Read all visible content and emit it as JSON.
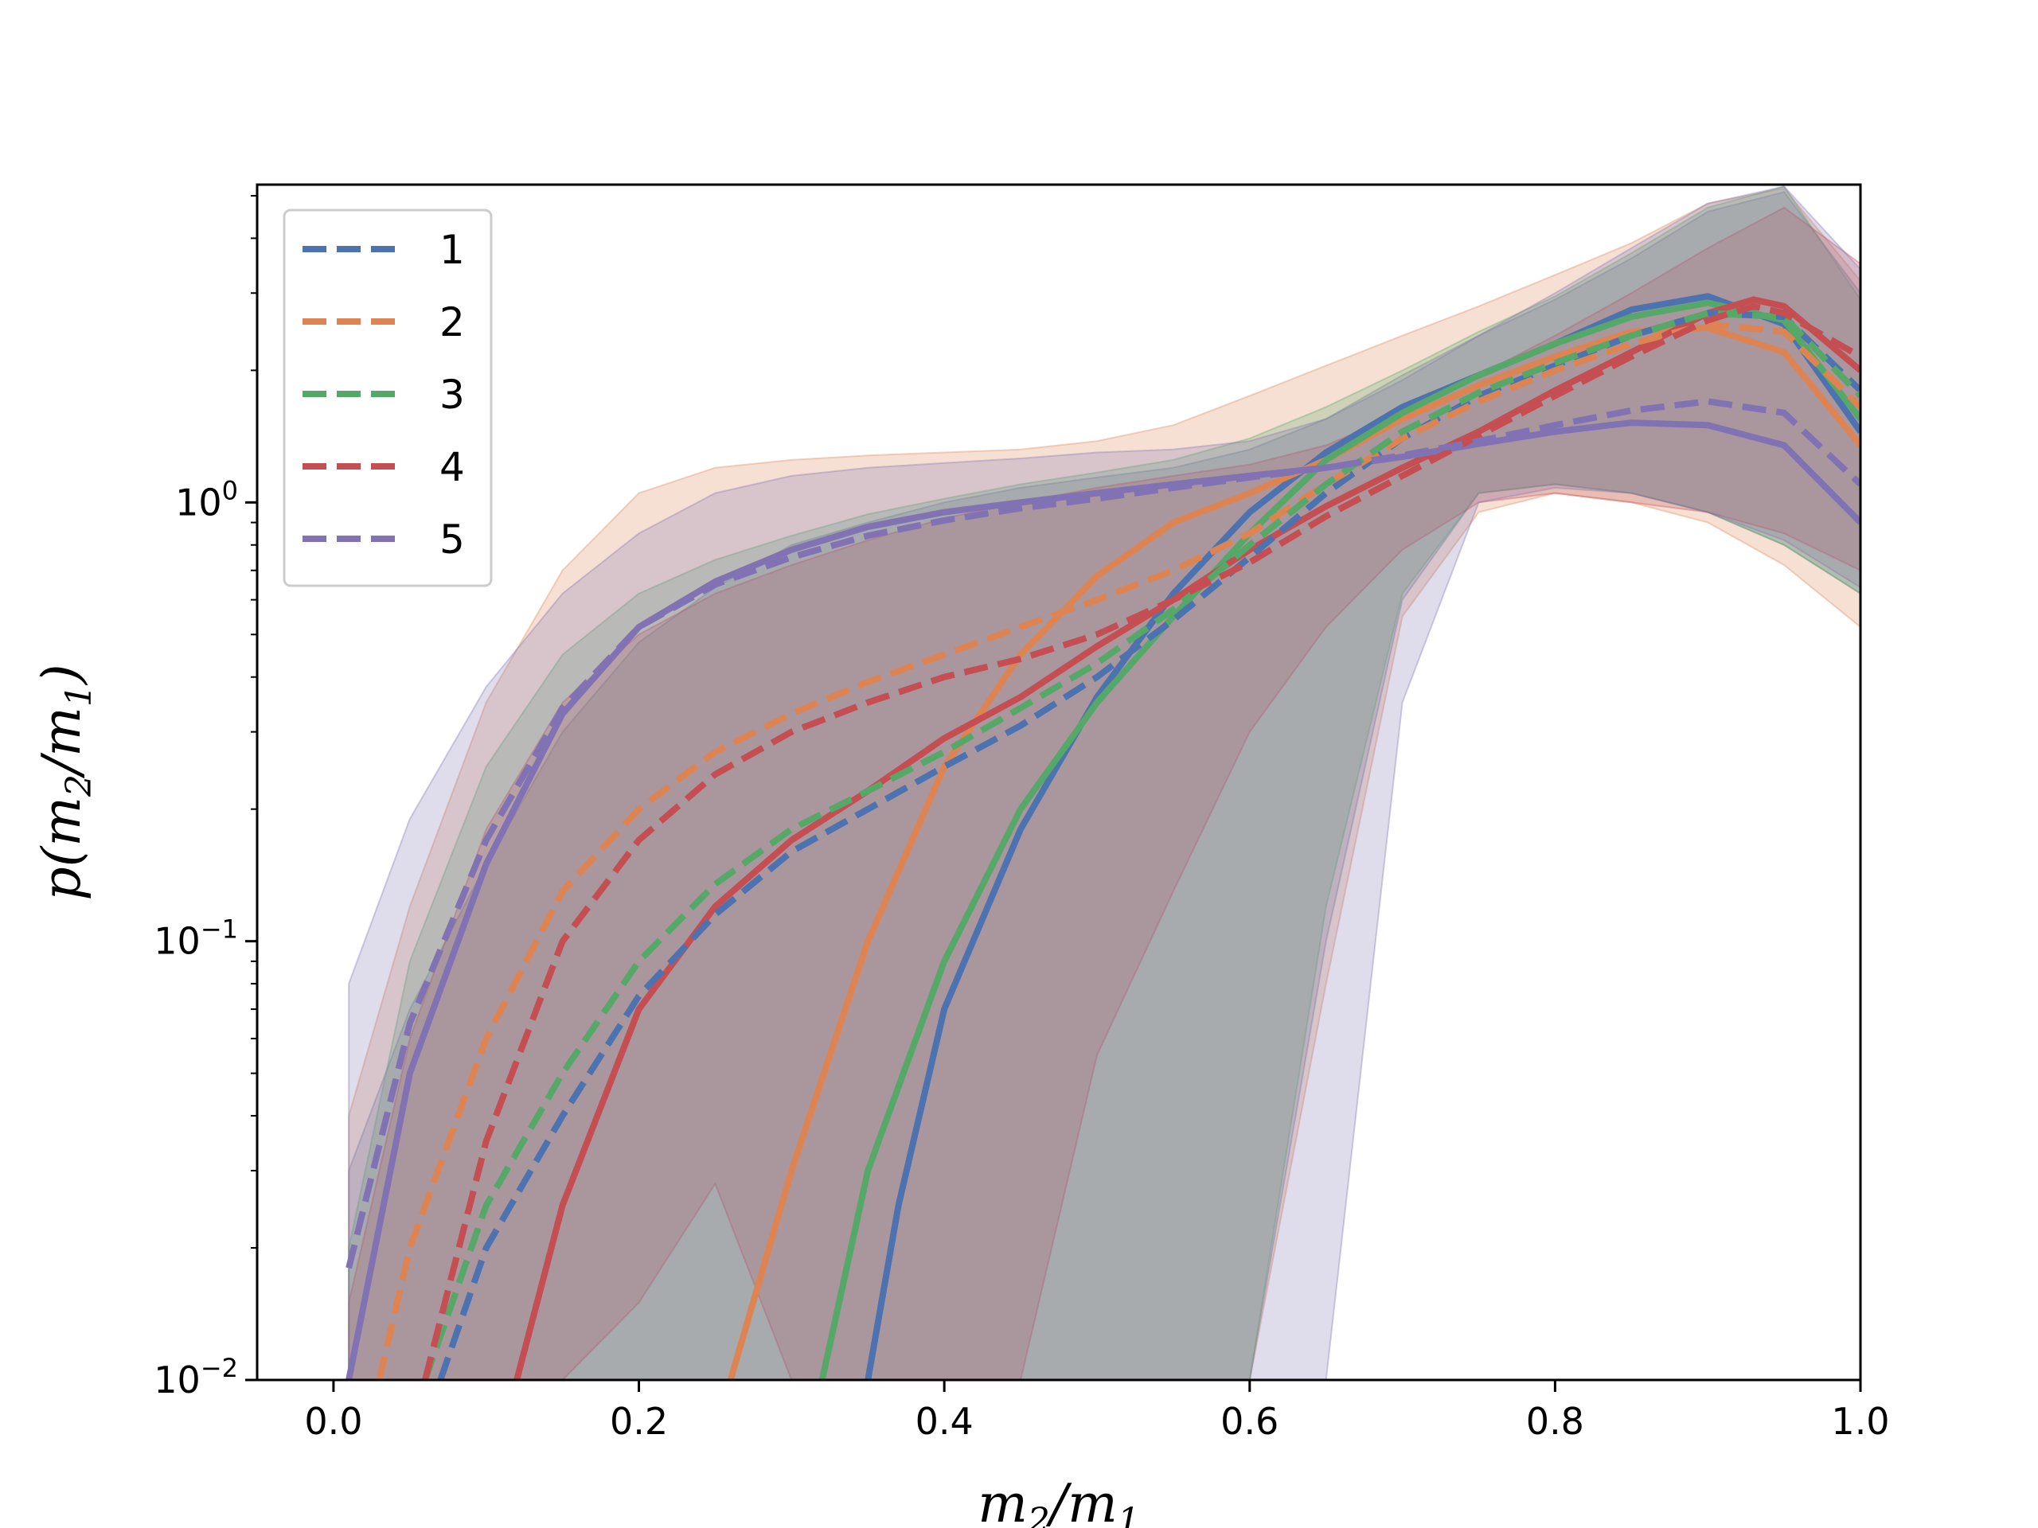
{
  "chart_data": {
    "type": "line",
    "title": "",
    "xlabel": "m2/m1",
    "ylabel": "p(m2/m1)",
    "xlim": [
      -0.05,
      1.0
    ],
    "ylim": [
      0.01,
      5.3
    ],
    "yscale": "log",
    "grid": false,
    "legend_position": "top-left",
    "x_ticks": [
      {
        "value": 0.0,
        "label": "0.0"
      },
      {
        "value": 0.2,
        "label": "0.2"
      },
      {
        "value": 0.4,
        "label": "0.4"
      },
      {
        "value": 0.6,
        "label": "0.6"
      },
      {
        "value": 0.8,
        "label": "0.8"
      },
      {
        "value": 1.0,
        "label": "1.0"
      }
    ],
    "y_ticks": [
      {
        "value": 0.01,
        "base": "10",
        "exp": "−2"
      },
      {
        "value": 0.1,
        "base": "10",
        "exp": "−1"
      },
      {
        "value": 1,
        "base": "10",
        "exp": "0"
      }
    ],
    "series": [
      {
        "name": "1",
        "color": "#4c72b0",
        "solid": [
          [
            0.35,
            0.01
          ],
          [
            0.37,
            0.025
          ],
          [
            0.4,
            0.07
          ],
          [
            0.45,
            0.18
          ],
          [
            0.5,
            0.36
          ],
          [
            0.55,
            0.62
          ],
          [
            0.6,
            0.95
          ],
          [
            0.65,
            1.3
          ],
          [
            0.7,
            1.65
          ],
          [
            0.75,
            1.95
          ],
          [
            0.8,
            2.3
          ],
          [
            0.85,
            2.75
          ],
          [
            0.9,
            2.95
          ],
          [
            0.95,
            2.55
          ],
          [
            1.0,
            1.45
          ]
        ],
        "dashed": [
          [
            0.07,
            0.01
          ],
          [
            0.1,
            0.02
          ],
          [
            0.15,
            0.04
          ],
          [
            0.2,
            0.075
          ],
          [
            0.25,
            0.115
          ],
          [
            0.3,
            0.16
          ],
          [
            0.35,
            0.2
          ],
          [
            0.4,
            0.25
          ],
          [
            0.45,
            0.31
          ],
          [
            0.5,
            0.4
          ],
          [
            0.55,
            0.54
          ],
          [
            0.6,
            0.75
          ],
          [
            0.65,
            1.05
          ],
          [
            0.7,
            1.4
          ],
          [
            0.75,
            1.75
          ],
          [
            0.8,
            2.05
          ],
          [
            0.85,
            2.4
          ],
          [
            0.9,
            2.7
          ],
          [
            0.95,
            2.65
          ],
          [
            1.0,
            1.8
          ]
        ],
        "band": {
          "x": [
            0.01,
            0.05,
            0.1,
            0.15,
            0.2,
            0.25,
            0.3,
            0.35,
            0.4,
            0.45,
            0.5,
            0.55,
            0.6,
            0.65,
            0.7,
            0.75,
            0.8,
            0.85,
            0.9,
            0.95,
            1.0
          ],
          "upper": [
            0.03,
            0.07,
            0.15,
            0.3,
            0.48,
            0.64,
            0.8,
            0.9,
            1.0,
            1.08,
            1.14,
            1.2,
            1.32,
            1.55,
            1.95,
            2.4,
            2.9,
            3.6,
            4.6,
            5.1,
            3.0
          ],
          "lower": [
            0.01,
            0.01,
            0.01,
            0.01,
            0.01,
            0.01,
            0.01,
            0.01,
            0.01,
            0.01,
            0.01,
            0.01,
            0.01,
            0.1,
            0.6,
            1.05,
            1.1,
            1.05,
            0.95,
            0.8,
            0.62
          ]
        }
      },
      {
        "name": "2",
        "color": "#dd8452",
        "solid": [
          [
            0.26,
            0.01
          ],
          [
            0.3,
            0.03
          ],
          [
            0.35,
            0.1
          ],
          [
            0.4,
            0.25
          ],
          [
            0.45,
            0.45
          ],
          [
            0.5,
            0.68
          ],
          [
            0.55,
            0.9
          ],
          [
            0.6,
            1.05
          ],
          [
            0.65,
            1.25
          ],
          [
            0.7,
            1.55
          ],
          [
            0.75,
            1.85
          ],
          [
            0.8,
            2.15
          ],
          [
            0.85,
            2.45
          ],
          [
            0.9,
            2.5
          ],
          [
            0.95,
            2.2
          ],
          [
            1.0,
            1.35
          ]
        ],
        "dashed": [
          [
            0.03,
            0.01
          ],
          [
            0.05,
            0.02
          ],
          [
            0.1,
            0.06
          ],
          [
            0.15,
            0.13
          ],
          [
            0.2,
            0.2
          ],
          [
            0.25,
            0.27
          ],
          [
            0.3,
            0.33
          ],
          [
            0.35,
            0.39
          ],
          [
            0.4,
            0.45
          ],
          [
            0.45,
            0.52
          ],
          [
            0.5,
            0.6
          ],
          [
            0.55,
            0.7
          ],
          [
            0.6,
            0.85
          ],
          [
            0.65,
            1.1
          ],
          [
            0.7,
            1.4
          ],
          [
            0.75,
            1.7
          ],
          [
            0.8,
            2.0
          ],
          [
            0.85,
            2.3
          ],
          [
            0.9,
            2.55
          ],
          [
            0.95,
            2.45
          ],
          [
            1.0,
            1.65
          ]
        ],
        "band": {
          "x": [
            0.01,
            0.05,
            0.1,
            0.15,
            0.2,
            0.25,
            0.3,
            0.35,
            0.4,
            0.45,
            0.5,
            0.55,
            0.6,
            0.65,
            0.7,
            0.75,
            0.8,
            0.85,
            0.9,
            0.95,
            1.0
          ],
          "upper": [
            0.04,
            0.12,
            0.35,
            0.7,
            1.05,
            1.2,
            1.25,
            1.28,
            1.3,
            1.32,
            1.38,
            1.5,
            1.75,
            2.05,
            2.4,
            2.8,
            3.3,
            3.9,
            4.8,
            5.2,
            3.2
          ],
          "lower": [
            0.01,
            0.01,
            0.01,
            0.01,
            0.01,
            0.01,
            0.01,
            0.01,
            0.01,
            0.01,
            0.01,
            0.01,
            0.01,
            0.08,
            0.55,
            0.95,
            1.05,
            1.0,
            0.9,
            0.72,
            0.52
          ]
        }
      },
      {
        "name": "3",
        "color": "#55a868",
        "solid": [
          [
            0.32,
            0.01
          ],
          [
            0.35,
            0.03
          ],
          [
            0.4,
            0.09
          ],
          [
            0.45,
            0.2
          ],
          [
            0.5,
            0.35
          ],
          [
            0.55,
            0.55
          ],
          [
            0.6,
            0.85
          ],
          [
            0.65,
            1.25
          ],
          [
            0.7,
            1.6
          ],
          [
            0.75,
            1.95
          ],
          [
            0.8,
            2.3
          ],
          [
            0.85,
            2.65
          ],
          [
            0.9,
            2.85
          ],
          [
            0.95,
            2.6
          ],
          [
            1.0,
            1.55
          ]
        ],
        "dashed": [
          [
            0.06,
            0.01
          ],
          [
            0.1,
            0.025
          ],
          [
            0.15,
            0.05
          ],
          [
            0.2,
            0.09
          ],
          [
            0.25,
            0.135
          ],
          [
            0.3,
            0.18
          ],
          [
            0.35,
            0.22
          ],
          [
            0.4,
            0.27
          ],
          [
            0.45,
            0.34
          ],
          [
            0.5,
            0.43
          ],
          [
            0.55,
            0.57
          ],
          [
            0.6,
            0.8
          ],
          [
            0.65,
            1.1
          ],
          [
            0.7,
            1.45
          ],
          [
            0.75,
            1.78
          ],
          [
            0.8,
            2.08
          ],
          [
            0.85,
            2.4
          ],
          [
            0.9,
            2.7
          ],
          [
            0.95,
            2.65
          ],
          [
            1.0,
            1.75
          ]
        ],
        "band": {
          "x": [
            0.01,
            0.05,
            0.1,
            0.15,
            0.2,
            0.25,
            0.3,
            0.35,
            0.4,
            0.45,
            0.5,
            0.55,
            0.6,
            0.65,
            0.7,
            0.75,
            0.8,
            0.85,
            0.9,
            0.95,
            1.0
          ],
          "upper": [
            0.02,
            0.09,
            0.25,
            0.45,
            0.62,
            0.74,
            0.84,
            0.94,
            1.02,
            1.1,
            1.17,
            1.25,
            1.4,
            1.65,
            2.0,
            2.45,
            2.95,
            3.7,
            4.7,
            5.25,
            2.9
          ],
          "lower": [
            0.01,
            0.01,
            0.01,
            0.01,
            0.01,
            0.01,
            0.01,
            0.01,
            0.01,
            0.01,
            0.01,
            0.01,
            0.01,
            0.12,
            0.62,
            1.05,
            1.1,
            1.05,
            0.95,
            0.8,
            0.62
          ]
        }
      },
      {
        "name": "4",
        "color": "#c44e52",
        "solid": [
          [
            0.12,
            0.01
          ],
          [
            0.15,
            0.025
          ],
          [
            0.2,
            0.07
          ],
          [
            0.25,
            0.12
          ],
          [
            0.3,
            0.17
          ],
          [
            0.35,
            0.22
          ],
          [
            0.4,
            0.29
          ],
          [
            0.45,
            0.36
          ],
          [
            0.5,
            0.47
          ],
          [
            0.55,
            0.6
          ],
          [
            0.6,
            0.78
          ],
          [
            0.65,
            0.98
          ],
          [
            0.7,
            1.2
          ],
          [
            0.75,
            1.45
          ],
          [
            0.8,
            1.8
          ],
          [
            0.85,
            2.2
          ],
          [
            0.9,
            2.7
          ],
          [
            0.93,
            2.9
          ],
          [
            0.95,
            2.8
          ],
          [
            1.0,
            2.0
          ]
        ],
        "dashed": [
          [
            0.06,
            0.01
          ],
          [
            0.1,
            0.035
          ],
          [
            0.15,
            0.1
          ],
          [
            0.2,
            0.17
          ],
          [
            0.25,
            0.24
          ],
          [
            0.3,
            0.3
          ],
          [
            0.35,
            0.35
          ],
          [
            0.4,
            0.4
          ],
          [
            0.45,
            0.44
          ],
          [
            0.5,
            0.5
          ],
          [
            0.55,
            0.6
          ],
          [
            0.6,
            0.73
          ],
          [
            0.65,
            0.93
          ],
          [
            0.7,
            1.15
          ],
          [
            0.75,
            1.42
          ],
          [
            0.8,
            1.75
          ],
          [
            0.85,
            2.15
          ],
          [
            0.9,
            2.6
          ],
          [
            0.93,
            2.8
          ],
          [
            0.95,
            2.7
          ],
          [
            1.0,
            2.15
          ]
        ],
        "band": {
          "x": [
            0.01,
            0.05,
            0.1,
            0.15,
            0.2,
            0.25,
            0.3,
            0.35,
            0.4,
            0.45,
            0.5,
            0.55,
            0.6,
            0.65,
            0.7,
            0.75,
            0.8,
            0.85,
            0.9,
            0.95,
            1.0
          ],
          "upper": [
            0.015,
            0.06,
            0.18,
            0.35,
            0.5,
            0.62,
            0.72,
            0.82,
            0.92,
            1.0,
            1.08,
            1.15,
            1.22,
            1.35,
            1.6,
            1.95,
            2.4,
            3.0,
            3.8,
            4.7,
            3.5
          ],
          "lower": [
            0.01,
            0.01,
            0.01,
            0.01,
            0.015,
            0.028,
            0.01,
            0.01,
            0.01,
            0.01,
            0.055,
            0.13,
            0.3,
            0.52,
            0.78,
            1.0,
            1.05,
            1.0,
            0.95,
            0.85,
            0.7
          ]
        }
      },
      {
        "name": "5",
        "color": "#8172b3",
        "solid": [
          [
            0.01,
            0.01
          ],
          [
            0.05,
            0.05
          ],
          [
            0.1,
            0.15
          ],
          [
            0.15,
            0.33
          ],
          [
            0.2,
            0.52
          ],
          [
            0.25,
            0.66
          ],
          [
            0.3,
            0.78
          ],
          [
            0.35,
            0.88
          ],
          [
            0.4,
            0.95
          ],
          [
            0.45,
            1.0
          ],
          [
            0.5,
            1.05
          ],
          [
            0.55,
            1.1
          ],
          [
            0.6,
            1.15
          ],
          [
            0.65,
            1.2
          ],
          [
            0.7,
            1.27
          ],
          [
            0.75,
            1.36
          ],
          [
            0.8,
            1.45
          ],
          [
            0.85,
            1.52
          ],
          [
            0.9,
            1.5
          ],
          [
            0.95,
            1.35
          ],
          [
            1.0,
            0.9
          ]
        ],
        "dashed": [
          [
            0.01,
            0.018
          ],
          [
            0.05,
            0.065
          ],
          [
            0.1,
            0.17
          ],
          [
            0.15,
            0.34
          ],
          [
            0.2,
            0.52
          ],
          [
            0.25,
            0.65
          ],
          [
            0.3,
            0.75
          ],
          [
            0.35,
            0.84
          ],
          [
            0.4,
            0.91
          ],
          [
            0.45,
            0.97
          ],
          [
            0.5,
            1.02
          ],
          [
            0.55,
            1.08
          ],
          [
            0.6,
            1.14
          ],
          [
            0.65,
            1.2
          ],
          [
            0.7,
            1.28
          ],
          [
            0.75,
            1.38
          ],
          [
            0.8,
            1.5
          ],
          [
            0.85,
            1.62
          ],
          [
            0.9,
            1.7
          ],
          [
            0.95,
            1.6
          ],
          [
            1.0,
            1.1
          ]
        ],
        "band": {
          "x": [
            0.01,
            0.05,
            0.1,
            0.15,
            0.2,
            0.25,
            0.3,
            0.35,
            0.4,
            0.45,
            0.5,
            0.55,
            0.6,
            0.65,
            0.7,
            0.75,
            0.8,
            0.85,
            0.9,
            0.95,
            1.0
          ],
          "upper": [
            0.08,
            0.19,
            0.38,
            0.62,
            0.85,
            1.05,
            1.15,
            1.2,
            1.23,
            1.26,
            1.3,
            1.32,
            1.38,
            1.55,
            1.9,
            2.4,
            3.0,
            3.8,
            4.8,
            5.25,
            3.4
          ],
          "lower": [
            0.01,
            0.01,
            0.01,
            0.01,
            0.01,
            0.01,
            0.01,
            0.01,
            0.01,
            0.01,
            0.01,
            0.01,
            0.01,
            0.01,
            0.35,
            1.0,
            1.08,
            1.05,
            0.95,
            0.82,
            0.64
          ]
        }
      }
    ]
  }
}
